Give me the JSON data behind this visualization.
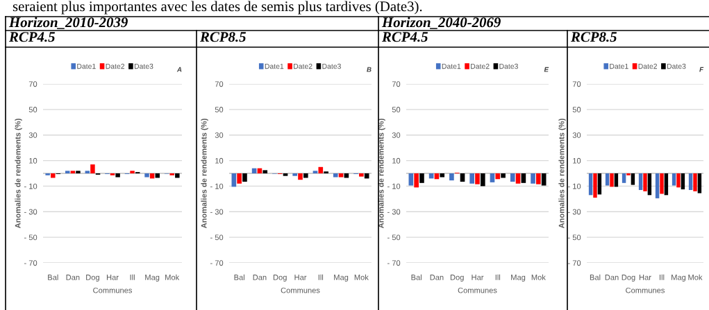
{
  "chart_data": [
    {
      "type": "bar",
      "title": "RCP4.5",
      "subtitle": "Horizon_2010-2039",
      "annotations": [
        "seraient plus importantes avec les dates de semis plus tardives (Date3).",
        "A"
      ],
      "xlabel": "Communes",
      "ylabel": "Anomalies de rendements (%)",
      "categories": [
        "Bal",
        "Dan",
        "Dog",
        "Har",
        "Ill",
        "Mag",
        "Mok"
      ],
      "ylim": [
        -70,
        70
      ],
      "yticks": [
        70,
        50,
        30,
        10,
        {
          "value": -10,
          "label": "- 10"
        },
        {
          "value": -30,
          "label": "- 30"
        },
        {
          "value": -50,
          "label": "- 50"
        },
        {
          "value": -70,
          "label": "- 70"
        }
      ],
      "grid": "y",
      "legend": "top",
      "series": [
        {
          "name": "Date1",
          "color": "#4472c4",
          "values": [
            -1.5,
            2,
            2,
            -0.5,
            -0.5,
            -3,
            -0.3
          ]
        },
        {
          "name": "Date2",
          "color": "#ff0000",
          "values": [
            -3.5,
            2,
            7,
            -1.5,
            2,
            -4,
            -1.5
          ]
        },
        {
          "name": "Date3",
          "color": "#000000",
          "values": [
            -0.5,
            2,
            -1,
            -3,
            1,
            -3.5,
            -3.5
          ]
        }
      ]
    },
    {
      "type": "bar",
      "title": "RCP8.5",
      "annotations": [
        "B"
      ],
      "xlabel": "Communes",
      "ylabel": "Anomalies de rendements (%)",
      "categories": [
        "Bal",
        "Dan",
        "Dog",
        "Har",
        "Ill",
        "Mag",
        "Mok"
      ],
      "ylim": [
        -70,
        70
      ],
      "yticks": [
        70,
        50,
        30,
        10,
        {
          "value": -10,
          "label": "- 10"
        },
        {
          "value": -30,
          "label": "- 30"
        },
        {
          "value": -50,
          "label": "- 50"
        },
        {
          "value": -70,
          "label": "- 70"
        }
      ],
      "grid": "y",
      "legend": "top",
      "series": [
        {
          "name": "Date1",
          "color": "#4472c4",
          "values": [
            -10.5,
            4,
            -0.3,
            -2,
            2,
            -3,
            -0.5
          ]
        },
        {
          "name": "Date2",
          "color": "#ff0000",
          "values": [
            -8,
            4,
            -0.5,
            -5,
            5,
            -3,
            -2.5
          ]
        },
        {
          "name": "Date3",
          "color": "#000000",
          "values": [
            -6.5,
            2.5,
            -2,
            -3.5,
            1.5,
            -3.5,
            -4
          ]
        }
      ]
    },
    {
      "type": "bar",
      "title": "RCP4.5",
      "subtitle": "Horizon_2040-2069",
      "annotations": [
        "E"
      ],
      "xlabel": "Communes",
      "ylabel": "Anomalies de rendements (%)",
      "categories": [
        "Bal",
        "Dan",
        "Dog",
        "Har",
        "Ill",
        "Mag",
        "Mok"
      ],
      "ylim": [
        -70,
        70
      ],
      "yticks": [
        70,
        50,
        30,
        10,
        {
          "value": -10,
          "label": "- 10"
        },
        {
          "value": -30,
          "label": "- 30"
        },
        {
          "value": -50,
          "label": "- 50"
        },
        {
          "value": -70,
          "label": "- 70"
        }
      ],
      "grid": "y",
      "legend": "top",
      "series": [
        {
          "name": "Date1",
          "color": "#4472c4",
          "values": [
            -9.5,
            -4,
            -5.5,
            -8,
            -7,
            -6.5,
            -8
          ]
        },
        {
          "name": "Date2",
          "color": "#ff0000",
          "values": [
            -11,
            -4.5,
            0.5,
            -8.5,
            -4.5,
            -8,
            -8.5
          ]
        },
        {
          "name": "Date3",
          "color": "#000000",
          "values": [
            -7.5,
            -3,
            -6.5,
            -10,
            -3.5,
            -7.5,
            -9.5
          ]
        }
      ]
    },
    {
      "type": "bar",
      "title": "RCP8.5",
      "annotations": [
        "F"
      ],
      "xlabel": "Communes",
      "ylabel": "Anomalies de rendements (%)",
      "categories": [
        "Bal",
        "Dan",
        "Dog",
        "Har",
        "Ill",
        "Mag",
        "Mok"
      ],
      "ylim": [
        -70,
        70
      ],
      "yticks": [
        70,
        50,
        30,
        10,
        {
          "value": -10,
          "label": "- 10"
        },
        {
          "value": -30,
          "label": "- 30"
        },
        {
          "value": -50,
          "label": "- 50"
        },
        {
          "value": -70,
          "label": "- 70"
        }
      ],
      "grid": "y",
      "legend": "top",
      "series": [
        {
          "name": "Date1",
          "color": "#4472c4",
          "values": [
            -17,
            -9.5,
            -7.5,
            -13,
            -19.5,
            -9.5,
            -13
          ]
        },
        {
          "name": "Date2",
          "color": "#ff0000",
          "values": [
            -19,
            -10.5,
            -1.5,
            -14,
            -16,
            -11,
            -14
          ]
        },
        {
          "name": "Date3",
          "color": "#000000",
          "values": [
            -16.5,
            -10.5,
            -9,
            -17,
            -17,
            -12.5,
            -15.5
          ]
        }
      ]
    }
  ]
}
